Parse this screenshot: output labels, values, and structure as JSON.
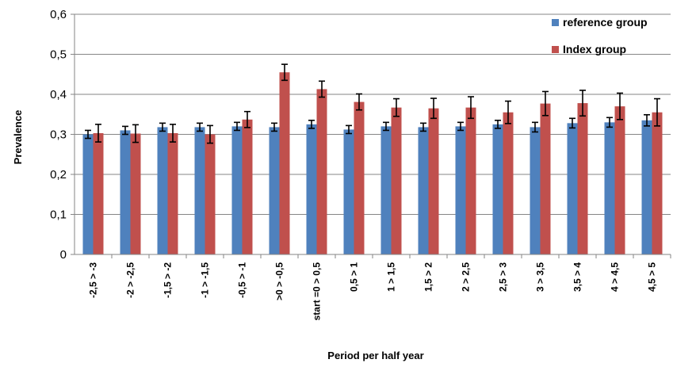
{
  "chart_data": {
    "type": "bar",
    "xlabel": "Period per half year",
    "ylabel": "Prevalence",
    "ylim": [
      0,
      0.6
    ],
    "yticks": [
      0,
      0.1,
      0.2,
      0.3,
      0.4,
      0.5,
      0.6
    ],
    "ytick_labels": [
      "0",
      "0,1",
      "0,2",
      "0,3",
      "0,4",
      "0,5",
      "0,6"
    ],
    "categories": [
      "-2,5 > -3",
      "-2 > -2,5",
      "-1,5 > -2",
      "-1 > -1,5",
      "-0,5 > -1",
      ">0 > -0,5",
      "start =0 > 0,5",
      "0,5 > 1",
      "1 > 1,5",
      "1,5 > 2",
      "2 > 2,5",
      "2,5 > 3",
      "3 > 3,5",
      "3,5 > 4",
      "4 > 4,5",
      "4,5 > 5"
    ],
    "grid": true,
    "legend_position": "top-right",
    "series": [
      {
        "name": "reference group",
        "color": "#4F81BD",
        "values": [
          0.3,
          0.31,
          0.318,
          0.318,
          0.32,
          0.318,
          0.325,
          0.312,
          0.32,
          0.318,
          0.32,
          0.325,
          0.318,
          0.328,
          0.33,
          0.335
        ],
        "error": [
          0.01,
          0.01,
          0.01,
          0.01,
          0.01,
          0.01,
          0.01,
          0.01,
          0.01,
          0.01,
          0.01,
          0.01,
          0.012,
          0.012,
          0.012,
          0.014
        ]
      },
      {
        "name": "Index group",
        "color": "#C0504D",
        "values": [
          0.303,
          0.302,
          0.303,
          0.3,
          0.337,
          0.455,
          0.413,
          0.381,
          0.367,
          0.365,
          0.367,
          0.355,
          0.377,
          0.378,
          0.37,
          0.355
        ],
        "error": [
          0.022,
          0.022,
          0.022,
          0.022,
          0.02,
          0.02,
          0.02,
          0.02,
          0.022,
          0.025,
          0.027,
          0.028,
          0.03,
          0.032,
          0.033,
          0.034
        ]
      }
    ]
  }
}
